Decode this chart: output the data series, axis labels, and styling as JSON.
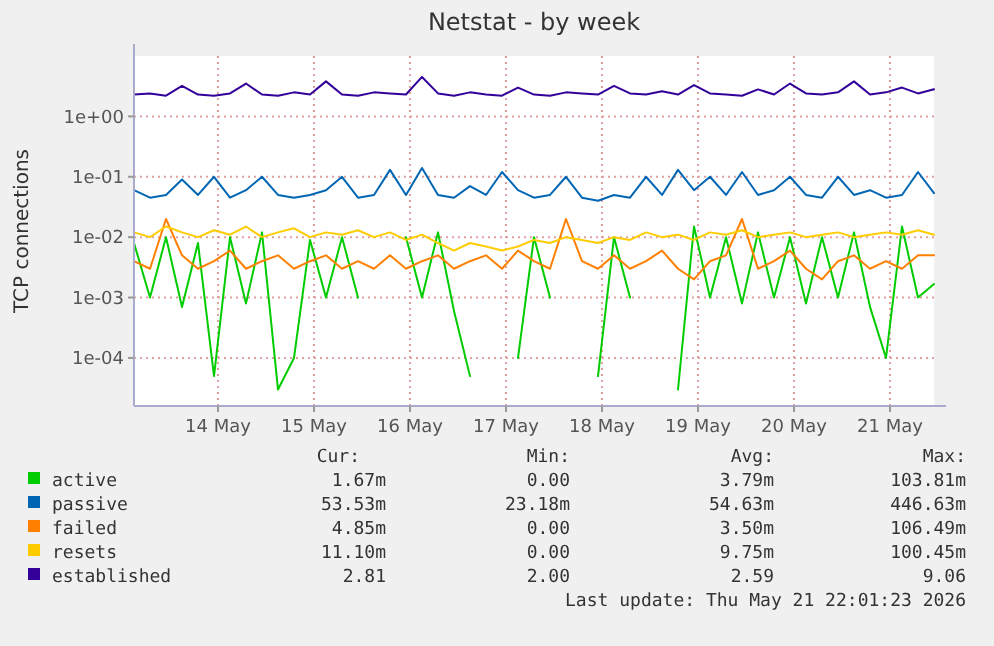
{
  "chart_data": {
    "type": "line",
    "title": "Netstat - by week",
    "ylabel": "TCP connections",
    "log": true,
    "grid": true,
    "legend": "bottom",
    "xlim": [
      "2026-05-13T15:00",
      "2026-05-21T23:00"
    ],
    "xticks": [
      {
        "value": "2026-05-14T12:00",
        "label": "14 May"
      },
      {
        "value": "2026-05-15T12:00",
        "label": "15 May"
      },
      {
        "value": "2026-05-16T12:00",
        "label": "16 May"
      },
      {
        "value": "2026-05-17T12:00",
        "label": "17 May"
      },
      {
        "value": "2026-05-18T12:00",
        "label": "18 May"
      },
      {
        "value": "2026-05-19T12:00",
        "label": "19 May"
      },
      {
        "value": "2026-05-20T12:00",
        "label": "20 May"
      },
      {
        "value": "2026-05-21T12:00",
        "label": "21 May"
      }
    ],
    "ylim": [
      1.6e-05,
      10
    ],
    "yticks": [
      {
        "value": 0.0001,
        "label": "1e-04"
      },
      {
        "value": 0.001,
        "label": "1e-03"
      },
      {
        "value": 0.01,
        "label": "1e-02"
      },
      {
        "value": 0.1,
        "label": "1e-01"
      },
      {
        "value": 1,
        "label": "1e+00"
      }
    ],
    "x": [
      "2026-05-13T15:00",
      "2026-05-13T19:00",
      "2026-05-13T23:00",
      "2026-05-14T03:00",
      "2026-05-14T07:00",
      "2026-05-14T11:00",
      "2026-05-14T15:00",
      "2026-05-14T19:00",
      "2026-05-14T23:00",
      "2026-05-15T03:00",
      "2026-05-15T07:00",
      "2026-05-15T11:00",
      "2026-05-15T15:00",
      "2026-05-15T19:00",
      "2026-05-15T23:00",
      "2026-05-16T03:00",
      "2026-05-16T07:00",
      "2026-05-16T11:00",
      "2026-05-16T15:00",
      "2026-05-16T19:00",
      "2026-05-16T23:00",
      "2026-05-17T03:00",
      "2026-05-17T07:00",
      "2026-05-17T11:00",
      "2026-05-17T15:00",
      "2026-05-17T19:00",
      "2026-05-17T23:00",
      "2026-05-18T03:00",
      "2026-05-18T07:00",
      "2026-05-18T11:00",
      "2026-05-18T15:00",
      "2026-05-18T19:00",
      "2026-05-18T23:00",
      "2026-05-19T03:00",
      "2026-05-19T07:00",
      "2026-05-19T11:00",
      "2026-05-19T15:00",
      "2026-05-19T19:00",
      "2026-05-19T23:00",
      "2026-05-20T03:00",
      "2026-05-20T07:00",
      "2026-05-20T11:00",
      "2026-05-20T15:00",
      "2026-05-20T19:00",
      "2026-05-20T23:00",
      "2026-05-21T03:00",
      "2026-05-21T07:00",
      "2026-05-21T11:00",
      "2026-05-21T15:00",
      "2026-05-21T19:00",
      "2026-05-21T23:00"
    ],
    "series": [
      {
        "name": "active",
        "color": "#00cc00",
        "values": [
          0.008,
          0.001,
          0.01,
          0.0007,
          0.008,
          5e-05,
          0.01,
          0.0008,
          0.012,
          3e-05,
          0.0001,
          0.009,
          0.001,
          0.01,
          0.001,
          null,
          null,
          0.01,
          0.001,
          0.012,
          0.0006,
          5e-05,
          null,
          null,
          0.0001,
          0.01,
          0.001,
          null,
          null,
          5e-05,
          0.01,
          0.001,
          null,
          null,
          3e-05,
          0.015,
          0.001,
          0.01,
          0.0008,
          0.012,
          0.001,
          0.01,
          0.0008,
          0.01,
          0.001,
          0.012,
          0.0007,
          0.0001,
          0.015,
          0.001,
          0.00167
        ]
      },
      {
        "name": "passive",
        "color": "#0066b3",
        "values": [
          0.06,
          0.045,
          0.05,
          0.09,
          0.05,
          0.1,
          0.045,
          0.06,
          0.1,
          0.05,
          0.045,
          0.05,
          0.06,
          0.1,
          0.045,
          0.05,
          0.13,
          0.05,
          0.14,
          0.05,
          0.045,
          0.07,
          0.05,
          0.12,
          0.06,
          0.045,
          0.05,
          0.1,
          0.045,
          0.04,
          0.05,
          0.045,
          0.1,
          0.05,
          0.13,
          0.06,
          0.1,
          0.05,
          0.12,
          0.05,
          0.06,
          0.1,
          0.05,
          0.045,
          0.1,
          0.05,
          0.06,
          0.045,
          0.05,
          0.12,
          0.0535
        ]
      },
      {
        "name": "failed",
        "color": "#ff8000",
        "values": [
          0.004,
          0.003,
          0.02,
          0.005,
          0.003,
          0.004,
          0.006,
          0.003,
          0.004,
          0.005,
          0.003,
          0.004,
          0.005,
          0.003,
          0.004,
          0.003,
          0.005,
          0.003,
          0.004,
          0.005,
          0.003,
          0.004,
          0.005,
          0.003,
          0.006,
          0.004,
          0.003,
          0.02,
          0.004,
          0.003,
          0.005,
          0.003,
          0.004,
          0.006,
          0.003,
          0.002,
          0.004,
          0.005,
          0.02,
          0.003,
          0.004,
          0.006,
          0.003,
          0.002,
          0.004,
          0.005,
          0.003,
          0.004,
          0.003,
          0.005,
          0.005
        ]
      },
      {
        "name": "resets",
        "color": "#ffcc00",
        "values": [
          0.012,
          0.01,
          0.015,
          0.012,
          0.01,
          0.013,
          0.011,
          0.015,
          0.01,
          0.012,
          0.014,
          0.01,
          0.012,
          0.011,
          0.013,
          0.01,
          0.012,
          0.009,
          0.011,
          0.008,
          0.006,
          0.008,
          0.007,
          0.006,
          0.007,
          0.009,
          0.008,
          0.01,
          0.009,
          0.008,
          0.01,
          0.009,
          0.012,
          0.01,
          0.011,
          0.009,
          0.012,
          0.011,
          0.013,
          0.01,
          0.011,
          0.012,
          0.01,
          0.011,
          0.012,
          0.01,
          0.011,
          0.012,
          0.011,
          0.013,
          0.011
        ]
      },
      {
        "name": "established",
        "color": "#330099",
        "values": [
          2.3,
          2.4,
          2.2,
          3.2,
          2.3,
          2.2,
          2.4,
          3.5,
          2.3,
          2.2,
          2.5,
          2.3,
          3.8,
          2.3,
          2.2,
          2.5,
          2.4,
          2.3,
          4.5,
          2.4,
          2.2,
          2.5,
          2.3,
          2.2,
          3.0,
          2.3,
          2.2,
          2.5,
          2.4,
          2.3,
          3.2,
          2.4,
          2.3,
          2.6,
          2.3,
          3.3,
          2.4,
          2.3,
          2.2,
          2.8,
          2.3,
          3.5,
          2.4,
          2.3,
          2.5,
          3.8,
          2.3,
          2.5,
          3.0,
          2.4,
          2.81
        ]
      }
    ],
    "annotations": [
      "Cur:",
      "Min:",
      "Avg:",
      "Max:",
      "1.67m",
      "0.00",
      "3.79m",
      "103.81m",
      "53.53m",
      "23.18m",
      "54.63m",
      "446.63m",
      "4.85m",
      "0.00",
      "3.50m",
      "106.49m",
      "11.10m",
      "0.00",
      "9.75m",
      "100.45m",
      "2.81",
      "2.00",
      "2.59",
      "9.06",
      "Last update: Thu May 21 22:01:23 2026"
    ]
  }
}
